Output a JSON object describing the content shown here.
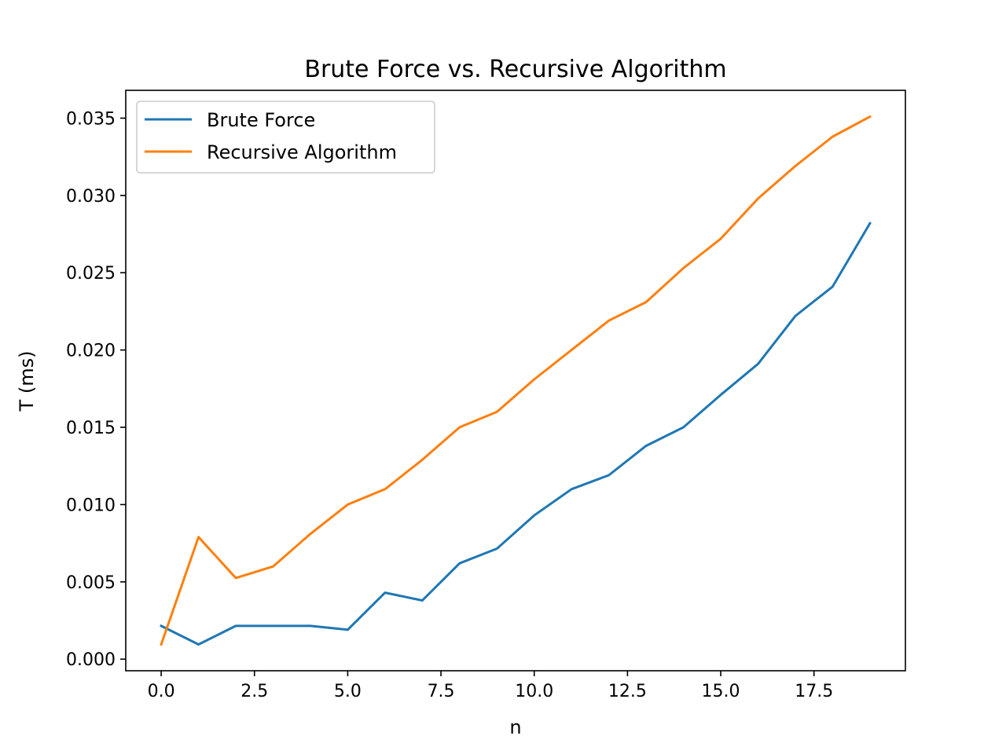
{
  "chart_data": {
    "type": "line",
    "title": "Brute Force vs. Recursive Algorithm",
    "xlabel": "n",
    "ylabel": "T (ms)",
    "xlim": [
      -0.95,
      19.95
    ],
    "ylim": [
      -0.00075,
      0.0368
    ],
    "xticks": [
      0.0,
      2.5,
      5.0,
      7.5,
      10.0,
      12.5,
      15.0,
      17.5
    ],
    "xtick_labels": [
      "0.0",
      "2.5",
      "5.0",
      "7.5",
      "10.0",
      "12.5",
      "15.0",
      "17.5"
    ],
    "yticks": [
      0.0,
      0.005,
      0.01,
      0.015,
      0.02,
      0.025,
      0.03,
      0.035
    ],
    "ytick_labels": [
      "0.000",
      "0.005",
      "0.010",
      "0.015",
      "0.020",
      "0.025",
      "0.030",
      "0.035"
    ],
    "grid": false,
    "legend_position": "top-left",
    "x": [
      0,
      1,
      2,
      3,
      4,
      5,
      6,
      7,
      8,
      9,
      10,
      11,
      12,
      13,
      14,
      15,
      16,
      17,
      18,
      19
    ],
    "series": [
      {
        "name": "Brute Force",
        "color": "#1f77b4",
        "values": [
          0.00215,
          0.00095,
          0.00215,
          0.00215,
          0.00215,
          0.0019,
          0.0043,
          0.0038,
          0.0062,
          0.00715,
          0.0093,
          0.011,
          0.0119,
          0.0138,
          0.015,
          0.0171,
          0.0191,
          0.0222,
          0.0241,
          0.0282
        ]
      },
      {
        "name": "Recursive Algorithm",
        "color": "#ff7f0e",
        "values": [
          0.00095,
          0.0079,
          0.00525,
          0.006,
          0.0081,
          0.01,
          0.011,
          0.0129,
          0.015,
          0.016,
          0.0181,
          0.02,
          0.0219,
          0.0231,
          0.0253,
          0.0272,
          0.0298,
          0.0319,
          0.0338,
          0.0351
        ]
      }
    ]
  }
}
